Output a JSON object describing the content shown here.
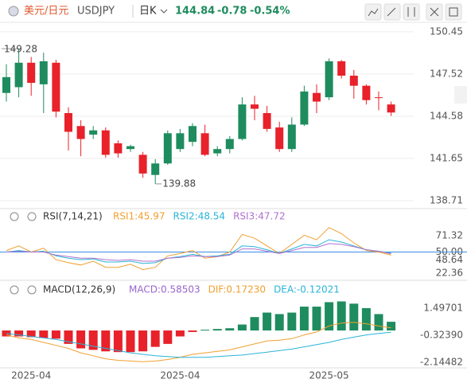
{
  "header": {
    "name": "美元/日元",
    "symbol": "USDJPY",
    "period": "日K",
    "price": "144.84",
    "change": "-0.78",
    "change_pct": "-0.54%"
  },
  "chart_data": [
    {
      "type": "candlestick",
      "up_color": "#1e8c5e",
      "down_color": "#e8212a",
      "open": [
        146.2,
        146.6,
        148.3,
        146.8,
        148.3,
        144.8,
        143.9,
        143.3,
        143.6,
        142.7,
        142.3,
        141.9,
        140.5,
        141.3,
        142.3,
        142.8,
        143.4,
        142.0,
        142.3,
        143.0,
        145.4,
        144.8,
        143.8,
        142.3,
        144.0,
        146.2,
        145.9,
        148.4,
        147.4,
        146.7,
        145.9,
        145.4
      ],
      "close": [
        147.3,
        148.3,
        146.9,
        148.4,
        144.9,
        143.5,
        143.0,
        143.6,
        141.9,
        142.0,
        142.5,
        140.6,
        141.3,
        143.4,
        143.4,
        143.9,
        141.9,
        142.3,
        143.0,
        145.4,
        145.1,
        143.7,
        142.3,
        144.0,
        146.3,
        145.6,
        148.4,
        147.4,
        146.7,
        145.7,
        145.9,
        144.84
      ],
      "high": [
        148.2,
        149.28,
        148.7,
        149.0,
        148.5,
        145.2,
        144.3,
        143.9,
        143.8,
        142.9,
        142.6,
        142.1,
        141.6,
        143.6,
        143.7,
        144.1,
        144.0,
        142.5,
        143.2,
        145.9,
        146.0,
        145.3,
        144.2,
        144.5,
        146.7,
        146.8,
        148.6,
        148.5,
        147.8,
        146.8,
        146.3,
        145.6
      ],
      "low": [
        145.6,
        145.9,
        146.0,
        144.8,
        144.5,
        142.2,
        141.8,
        143.0,
        141.7,
        141.7,
        142.1,
        140.3,
        139.88,
        141.2,
        142.1,
        142.5,
        141.8,
        141.8,
        142.0,
        142.9,
        144.3,
        143.5,
        142.1,
        142.1,
        143.9,
        144.8,
        145.7,
        147.2,
        145.8,
        145.4,
        145.0,
        144.6
      ],
      "annotations": [
        "149.28",
        "139.88"
      ],
      "ylim": [
        138.27,
        151.11
      ],
      "yticks": [
        150.45,
        147.52,
        144.58,
        141.65,
        138.71
      ],
      "grid": true
    },
    {
      "type": "line",
      "title": "RSI(7,14,21)",
      "series": [
        {
          "name": "RSI1:45.97",
          "color": "#f0a030",
          "values": [
            52,
            58,
            50,
            55,
            40,
            36,
            33,
            38,
            30,
            30,
            34,
            27,
            30,
            45,
            48,
            52,
            42,
            44,
            50,
            73,
            68,
            58,
            48,
            60,
            72,
            66,
            82,
            74,
            62,
            52,
            50,
            45.97
          ]
        },
        {
          "name": "RSI2:48.54",
          "color": "#2ab4d8",
          "values": [
            50,
            52,
            50,
            51,
            45,
            42,
            40,
            41,
            37,
            37,
            38,
            35,
            36,
            42,
            44,
            47,
            44,
            45,
            47,
            58,
            57,
            53,
            48,
            54,
            60,
            58,
            66,
            63,
            58,
            53,
            51,
            48.54
          ]
        },
        {
          "name": "RSI3:47.72",
          "color": "#b070d0",
          "values": [
            50,
            51,
            50,
            50,
            46,
            44,
            42,
            42,
            40,
            39,
            40,
            38,
            38,
            42,
            43,
            45,
            44,
            44,
            46,
            54,
            54,
            51,
            48,
            52,
            56,
            56,
            61,
            60,
            57,
            53,
            51,
            47.72
          ]
        }
      ],
      "hline": {
        "value": 50,
        "color": "#3a8ee6"
      },
      "ylim": [
        15.1,
        98.4
      ],
      "yticks": [
        71.32,
        {
          "value": 50,
          "label": "50.00"
        },
        48.64,
        22.36
      ]
    },
    {
      "type": "macd",
      "title": "MACD(12,26,9)",
      "categories": [
        null,
        null,
        "2025-04",
        null,
        null,
        null,
        null,
        null,
        null,
        null,
        null,
        null,
        null,
        null,
        "2025-04",
        null,
        null,
        null,
        null,
        null,
        null,
        null,
        null,
        null,
        null,
        null,
        "2025-05",
        null,
        null,
        null,
        null,
        null
      ],
      "bars": {
        "name": "MACD:0.58503",
        "color": "#9966cc",
        "up_color": "#1e8c5e",
        "down_color": "#e8212a",
        "values": [
          -0.4,
          -0.4,
          -0.45,
          -0.5,
          -0.55,
          -0.9,
          -1.2,
          -1.3,
          -1.4,
          -1.45,
          -1.45,
          -1.4,
          -1.1,
          -0.9,
          -0.4,
          -0.1,
          0.05,
          0.1,
          0.15,
          0.4,
          0.9,
          1.2,
          1.1,
          1.2,
          1.6,
          1.6,
          1.9,
          1.95,
          1.8,
          1.5,
          1.1,
          0.58503
        ]
      },
      "series": [
        {
          "name": "DIF:0.17230",
          "color": "#f0a030",
          "values": [
            -0.3,
            -0.5,
            -0.6,
            -0.8,
            -1.0,
            -1.2,
            -1.5,
            -1.7,
            -1.9,
            -2.0,
            -2.05,
            -2.1,
            -2.05,
            -1.95,
            -1.8,
            -1.6,
            -1.5,
            -1.4,
            -1.3,
            -1.1,
            -0.9,
            -0.7,
            -0.65,
            -0.55,
            -0.3,
            -0.1,
            0.3,
            0.5,
            0.55,
            0.45,
            0.3,
            0.1723
          ]
        },
        {
          "name": "DEA:-0.12021",
          "color": "#2ab4d8",
          "values": [
            -0.2,
            -0.3,
            -0.4,
            -0.5,
            -0.6,
            -0.75,
            -0.9,
            -1.05,
            -1.2,
            -1.35,
            -1.5,
            -1.6,
            -1.7,
            -1.75,
            -1.8,
            -1.8,
            -1.8,
            -1.75,
            -1.7,
            -1.65,
            -1.55,
            -1.45,
            -1.35,
            -1.25,
            -1.1,
            -0.95,
            -0.8,
            -0.6,
            -0.45,
            -0.3,
            -0.2,
            -0.12021
          ]
        }
      ],
      "ylim": [
        -2.51,
        2.94
      ],
      "yticks": [
        1.49701,
        {
          "value": -0.3239,
          "label": "-0.32390"
        },
        -2.14482
      ]
    }
  ]
}
